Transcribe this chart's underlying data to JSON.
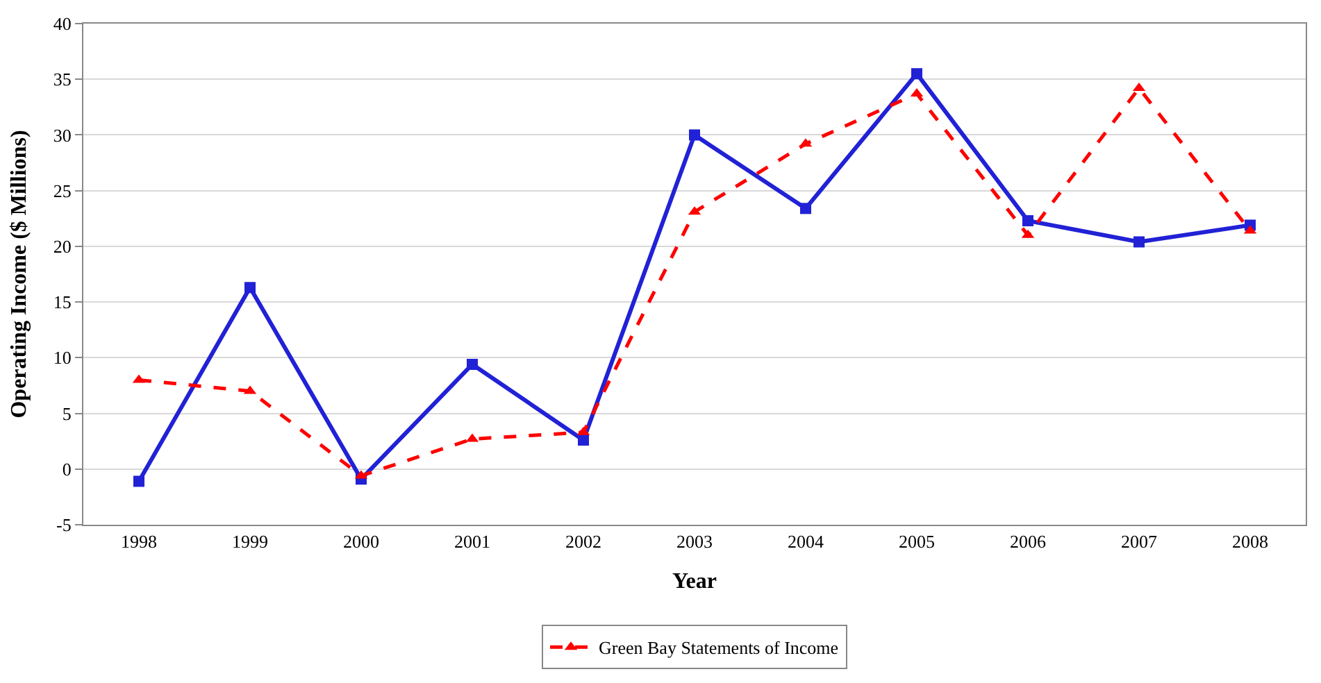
{
  "chart_data": {
    "type": "line",
    "xlabel": "Year",
    "ylabel": "Operating Income ($ Millions)",
    "categories": [
      "1998",
      "1999",
      "2000",
      "2001",
      "2002",
      "2003",
      "2004",
      "2005",
      "2006",
      "2007",
      "2008"
    ],
    "series": [
      {
        "color": "#2121d6",
        "marker": "square",
        "line_style": "solid",
        "values": [
          -1.1,
          16.3,
          -0.9,
          9.4,
          2.6,
          30.0,
          23.4,
          35.5,
          22.3,
          20.4,
          21.9
        ]
      },
      {
        "name": "Green Bay Statements of Income",
        "color": "#ff0000",
        "marker": "triangle",
        "line_style": "dashed",
        "values": [
          8.0,
          7.0,
          -0.6,
          2.7,
          3.3,
          23.1,
          29.2,
          33.7,
          21.0,
          34.2,
          21.4
        ]
      }
    ],
    "ylim": [
      -5,
      40
    ],
    "yticks": [
      -5,
      0,
      5,
      10,
      15,
      20,
      25,
      30,
      35,
      40
    ],
    "grid": "y",
    "legend": "bottom"
  }
}
